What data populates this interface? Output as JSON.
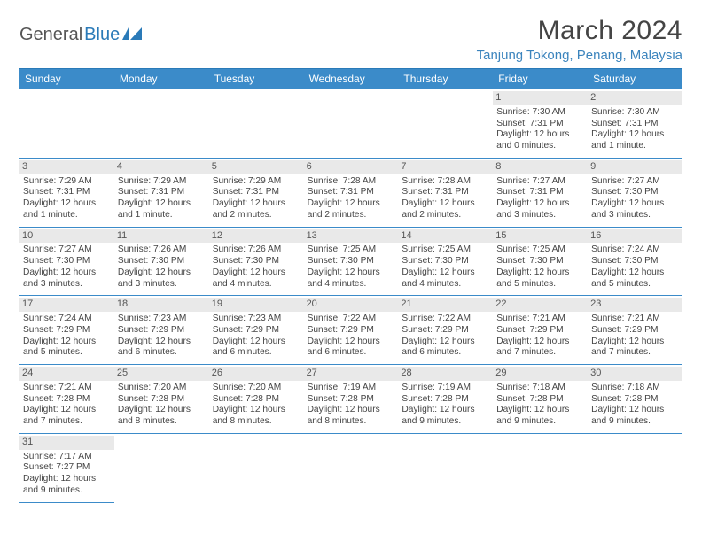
{
  "brand": {
    "word1": "General",
    "word2": "Blue"
  },
  "title": "March 2024",
  "location": "Tanjung Tokong, Penang, Malaysia",
  "colors": {
    "header_bg": "#3b8bc9",
    "header_text": "#ffffff",
    "rule": "#3b8bc9",
    "daynum_bg": "#e9e9e9",
    "logo_blue": "#2a7ab8"
  },
  "dayNames": [
    "Sunday",
    "Monday",
    "Tuesday",
    "Wednesday",
    "Thursday",
    "Friday",
    "Saturday"
  ],
  "firstWeekday": 5,
  "daysInMonth": 31,
  "days": [
    {
      "n": 1,
      "sunrise": "7:30 AM",
      "sunset": "7:31 PM",
      "daylight": "12 hours and 0 minutes."
    },
    {
      "n": 2,
      "sunrise": "7:30 AM",
      "sunset": "7:31 PM",
      "daylight": "12 hours and 1 minute."
    },
    {
      "n": 3,
      "sunrise": "7:29 AM",
      "sunset": "7:31 PM",
      "daylight": "12 hours and 1 minute."
    },
    {
      "n": 4,
      "sunrise": "7:29 AM",
      "sunset": "7:31 PM",
      "daylight": "12 hours and 1 minute."
    },
    {
      "n": 5,
      "sunrise": "7:29 AM",
      "sunset": "7:31 PM",
      "daylight": "12 hours and 2 minutes."
    },
    {
      "n": 6,
      "sunrise": "7:28 AM",
      "sunset": "7:31 PM",
      "daylight": "12 hours and 2 minutes."
    },
    {
      "n": 7,
      "sunrise": "7:28 AM",
      "sunset": "7:31 PM",
      "daylight": "12 hours and 2 minutes."
    },
    {
      "n": 8,
      "sunrise": "7:27 AM",
      "sunset": "7:31 PM",
      "daylight": "12 hours and 3 minutes."
    },
    {
      "n": 9,
      "sunrise": "7:27 AM",
      "sunset": "7:30 PM",
      "daylight": "12 hours and 3 minutes."
    },
    {
      "n": 10,
      "sunrise": "7:27 AM",
      "sunset": "7:30 PM",
      "daylight": "12 hours and 3 minutes."
    },
    {
      "n": 11,
      "sunrise": "7:26 AM",
      "sunset": "7:30 PM",
      "daylight": "12 hours and 3 minutes."
    },
    {
      "n": 12,
      "sunrise": "7:26 AM",
      "sunset": "7:30 PM",
      "daylight": "12 hours and 4 minutes."
    },
    {
      "n": 13,
      "sunrise": "7:25 AM",
      "sunset": "7:30 PM",
      "daylight": "12 hours and 4 minutes."
    },
    {
      "n": 14,
      "sunrise": "7:25 AM",
      "sunset": "7:30 PM",
      "daylight": "12 hours and 4 minutes."
    },
    {
      "n": 15,
      "sunrise": "7:25 AM",
      "sunset": "7:30 PM",
      "daylight": "12 hours and 5 minutes."
    },
    {
      "n": 16,
      "sunrise": "7:24 AM",
      "sunset": "7:30 PM",
      "daylight": "12 hours and 5 minutes."
    },
    {
      "n": 17,
      "sunrise": "7:24 AM",
      "sunset": "7:29 PM",
      "daylight": "12 hours and 5 minutes."
    },
    {
      "n": 18,
      "sunrise": "7:23 AM",
      "sunset": "7:29 PM",
      "daylight": "12 hours and 6 minutes."
    },
    {
      "n": 19,
      "sunrise": "7:23 AM",
      "sunset": "7:29 PM",
      "daylight": "12 hours and 6 minutes."
    },
    {
      "n": 20,
      "sunrise": "7:22 AM",
      "sunset": "7:29 PM",
      "daylight": "12 hours and 6 minutes."
    },
    {
      "n": 21,
      "sunrise": "7:22 AM",
      "sunset": "7:29 PM",
      "daylight": "12 hours and 6 minutes."
    },
    {
      "n": 22,
      "sunrise": "7:21 AM",
      "sunset": "7:29 PM",
      "daylight": "12 hours and 7 minutes."
    },
    {
      "n": 23,
      "sunrise": "7:21 AM",
      "sunset": "7:29 PM",
      "daylight": "12 hours and 7 minutes."
    },
    {
      "n": 24,
      "sunrise": "7:21 AM",
      "sunset": "7:28 PM",
      "daylight": "12 hours and 7 minutes."
    },
    {
      "n": 25,
      "sunrise": "7:20 AM",
      "sunset": "7:28 PM",
      "daylight": "12 hours and 8 minutes."
    },
    {
      "n": 26,
      "sunrise": "7:20 AM",
      "sunset": "7:28 PM",
      "daylight": "12 hours and 8 minutes."
    },
    {
      "n": 27,
      "sunrise": "7:19 AM",
      "sunset": "7:28 PM",
      "daylight": "12 hours and 8 minutes."
    },
    {
      "n": 28,
      "sunrise": "7:19 AM",
      "sunset": "7:28 PM",
      "daylight": "12 hours and 9 minutes."
    },
    {
      "n": 29,
      "sunrise": "7:18 AM",
      "sunset": "7:28 PM",
      "daylight": "12 hours and 9 minutes."
    },
    {
      "n": 30,
      "sunrise": "7:18 AM",
      "sunset": "7:28 PM",
      "daylight": "12 hours and 9 minutes."
    },
    {
      "n": 31,
      "sunrise": "7:17 AM",
      "sunset": "7:27 PM",
      "daylight": "12 hours and 9 minutes."
    }
  ],
  "labels": {
    "sunrise": "Sunrise:",
    "sunset": "Sunset:",
    "daylight": "Daylight:"
  }
}
